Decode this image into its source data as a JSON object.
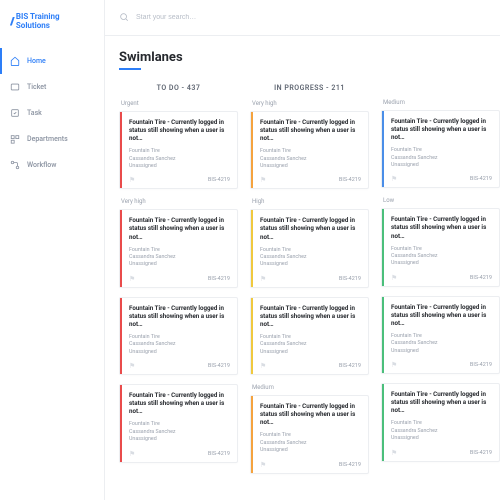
{
  "brand": "BIS Training Solutions",
  "nav": [
    {
      "label": "Home",
      "icon": "home"
    },
    {
      "label": "Ticket",
      "icon": "ticket"
    },
    {
      "label": "Task",
      "icon": "task"
    },
    {
      "label": "Departments",
      "icon": "departments"
    },
    {
      "label": "Workflow",
      "icon": "workflow"
    }
  ],
  "search": {
    "placeholder": "Start your search…"
  },
  "page_title": "Swimlanes",
  "colors": {
    "accent": "#2d7ef7",
    "urgent": "#e94b4b",
    "veryhigh": "#f5a33e",
    "high": "#f0c93e",
    "medium": "#4a8ee8",
    "low": "#4bbf7b"
  },
  "card_common": {
    "title": "Fountain Tire - Currently logged in status still showing when a user is not…",
    "meta_line1": "Fountain Tire",
    "meta_line2": "Cassandra Sanchez",
    "meta_line3": "Unassigned",
    "id": "BIS-4219"
  },
  "lanes": [
    {
      "header": "TO DO - 437",
      "groups": [
        {
          "label": "Urgent",
          "color": "red",
          "cards": 1
        },
        {
          "label": "Very high",
          "color": "red",
          "cards": 3
        }
      ]
    },
    {
      "header": "IN PROGRESS - 211",
      "groups": [
        {
          "label": "Very high",
          "color": "orange",
          "cards": 1
        },
        {
          "label": "High",
          "color": "yellow",
          "cards": 2
        },
        {
          "label": "Medium",
          "color": "orange",
          "cards": 1
        }
      ]
    },
    {
      "header": "",
      "groups": [
        {
          "label": "Medium",
          "color": "blue",
          "cards": 1
        },
        {
          "label": "Low",
          "color": "green",
          "cards": 3
        }
      ]
    }
  ]
}
